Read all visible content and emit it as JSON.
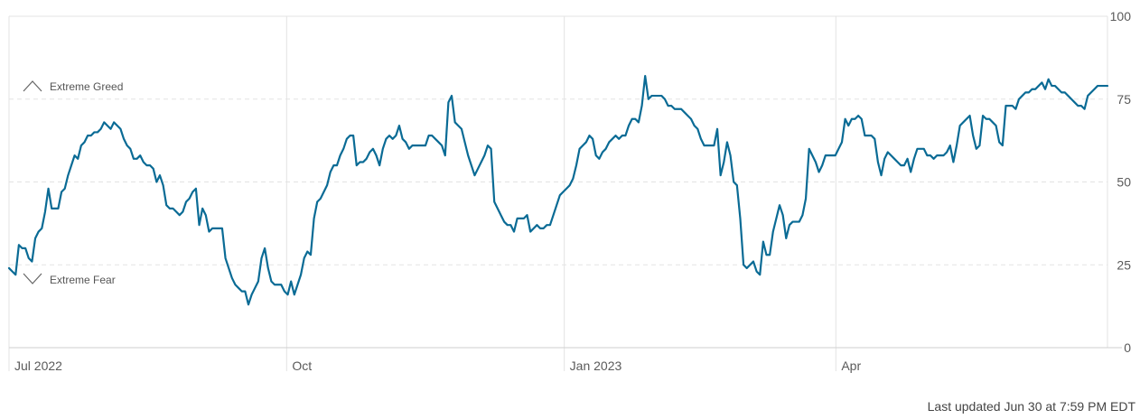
{
  "chart_data": {
    "type": "line",
    "title": "",
    "xlabel": "",
    "ylabel": "",
    "ylim": [
      0,
      100
    ],
    "y_ticks": [
      "0",
      "25",
      "50",
      "75",
      "100"
    ],
    "x_ticks": [
      "Jul 2022",
      "Oct",
      "Jan 2023",
      "Apr"
    ],
    "grid": "dashed horizontal at 25, 50, 75; vertical lines at month ticks",
    "annotations": {
      "upper": "Extreme Greed",
      "lower": "Extreme Fear"
    },
    "colors": {
      "line": "#0a6b95",
      "grid": "#e3e3e3",
      "axis": "#cfcfcf"
    },
    "series": [
      {
        "x_start": "2022-07-01",
        "x_end": "2023-06-30",
        "values": [
          24,
          23,
          22,
          31,
          30,
          30,
          27,
          26,
          33,
          35,
          36,
          41,
          48,
          42,
          42,
          42,
          47,
          48,
          52,
          55,
          58,
          57,
          61,
          62,
          64,
          64,
          65,
          65,
          66,
          68,
          67,
          66,
          68,
          67,
          66,
          63,
          61,
          60,
          57,
          57,
          58,
          56,
          55,
          55,
          54,
          50,
          52,
          49,
          43,
          42,
          42,
          41,
          40,
          41,
          44,
          45,
          47,
          48,
          37,
          42,
          40,
          35,
          36,
          36,
          36,
          36,
          27,
          24,
          21,
          19,
          18,
          17,
          17,
          13,
          16,
          18,
          20,
          27,
          30,
          24,
          20,
          19,
          19,
          19,
          17,
          16,
          20,
          16,
          19,
          22,
          27,
          29,
          28,
          39,
          44,
          45,
          47,
          49,
          53,
          55,
          55,
          58,
          60,
          63,
          64,
          64,
          55,
          56,
          56,
          57,
          59,
          60,
          58,
          55,
          60,
          63,
          64,
          63,
          64,
          67,
          63,
          62,
          60,
          61,
          61,
          61,
          61,
          61,
          64,
          64,
          63,
          62,
          61,
          58,
          74,
          76,
          68,
          67,
          66,
          62,
          58,
          55,
          52,
          54,
          56,
          58,
          61,
          60,
          44,
          42,
          40,
          38,
          37,
          37,
          35,
          39,
          39,
          39,
          40,
          35,
          36,
          37,
          36,
          36,
          37,
          37,
          40,
          43,
          46,
          47,
          48,
          49,
          51,
          55,
          60,
          61,
          62,
          64,
          63,
          58,
          57,
          59,
          60,
          62,
          63,
          64,
          63,
          64,
          64,
          67,
          69,
          69,
          68,
          73,
          82,
          75,
          76,
          76,
          76,
          76,
          75,
          73,
          73,
          72,
          72,
          72,
          71,
          70,
          69,
          67,
          66,
          63,
          61,
          61,
          61,
          61,
          66,
          52,
          56,
          62,
          58,
          50,
          49,
          39,
          25,
          24,
          25,
          26,
          23,
          22,
          32,
          28,
          28,
          35,
          39,
          43,
          40,
          33,
          37,
          38,
          38,
          38,
          40,
          45,
          60,
          58,
          56,
          53,
          55,
          58,
          58,
          58,
          58,
          60,
          62,
          69,
          67,
          69,
          69,
          70,
          69,
          64,
          64,
          64,
          63,
          56,
          52,
          57,
          59,
          58,
          57,
          56,
          55,
          55,
          57,
          53,
          57,
          60,
          60,
          60,
          58,
          58,
          57,
          58,
          58,
          58,
          59,
          61,
          56,
          61,
          67,
          68,
          69,
          70,
          64,
          60,
          61,
          70,
          69,
          69,
          68,
          67,
          62,
          61,
          73,
          73,
          73,
          72,
          75,
          76,
          77,
          77,
          78,
          78,
          79,
          80,
          78,
          81,
          79,
          79,
          78,
          77,
          77,
          76,
          75,
          74,
          73,
          73,
          72,
          76,
          77,
          78,
          79,
          79,
          79,
          79
        ]
      }
    ]
  },
  "footer": {
    "updated": "Last updated Jun 30 at 7:59 PM EDT"
  }
}
